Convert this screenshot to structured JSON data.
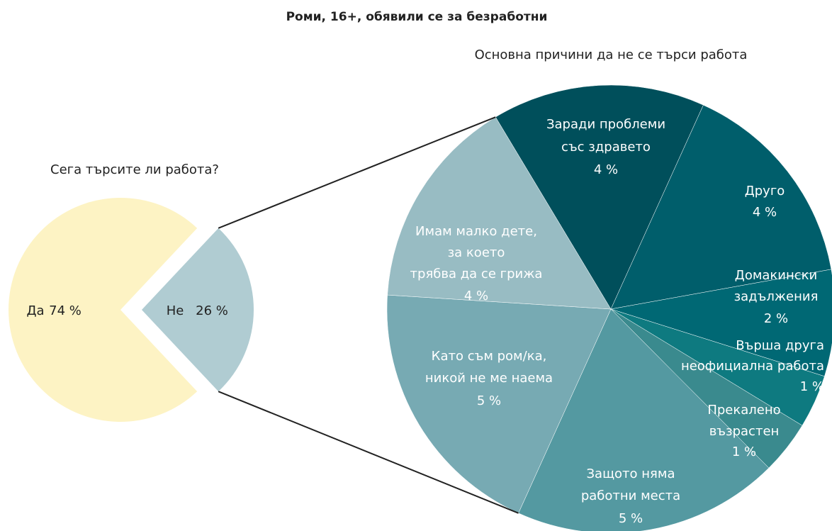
{
  "title": "Роми, 16+, обявили се за безработни",
  "chart_data": [
    {
      "type": "pie",
      "title": "Сега търсите ли работа?",
      "categories": [
        "Да",
        "Не"
      ],
      "values": [
        74,
        26
      ],
      "value_labels": [
        "74 %",
        "26 %"
      ],
      "colors": [
        "#fdf3c4",
        "#b0ccd2"
      ]
    },
    {
      "type": "pie",
      "title": "Основна причини да не се търси работа",
      "categories": [
        [
          "Заради проблеми",
          "със здравето"
        ],
        [
          "Друго"
        ],
        [
          "Домакински",
          "задължения"
        ],
        [
          "Върша друга",
          "неофициална работа"
        ],
        [
          "Прекалено",
          "възрастен"
        ],
        [
          "Защото няма",
          "работни места"
        ],
        [
          "Като съм ром/ка,",
          "никой не ме наема"
        ],
        [
          "Имам малко дете,",
          "за което",
          "трябва да се грижа"
        ]
      ],
      "values": [
        4,
        4,
        2,
        1,
        1,
        5,
        5,
        4
      ],
      "value_labels": [
        "4 %",
        "4 %",
        "2 %",
        "1 %",
        "1 %",
        "5 %",
        "5 %",
        "4 %"
      ],
      "colors": [
        "#004f5b",
        "#005e6b",
        "#006874",
        "#0e7a80",
        "#3a8a8e",
        "#5499a1",
        "#77aab3",
        "#98bcc3"
      ]
    }
  ]
}
